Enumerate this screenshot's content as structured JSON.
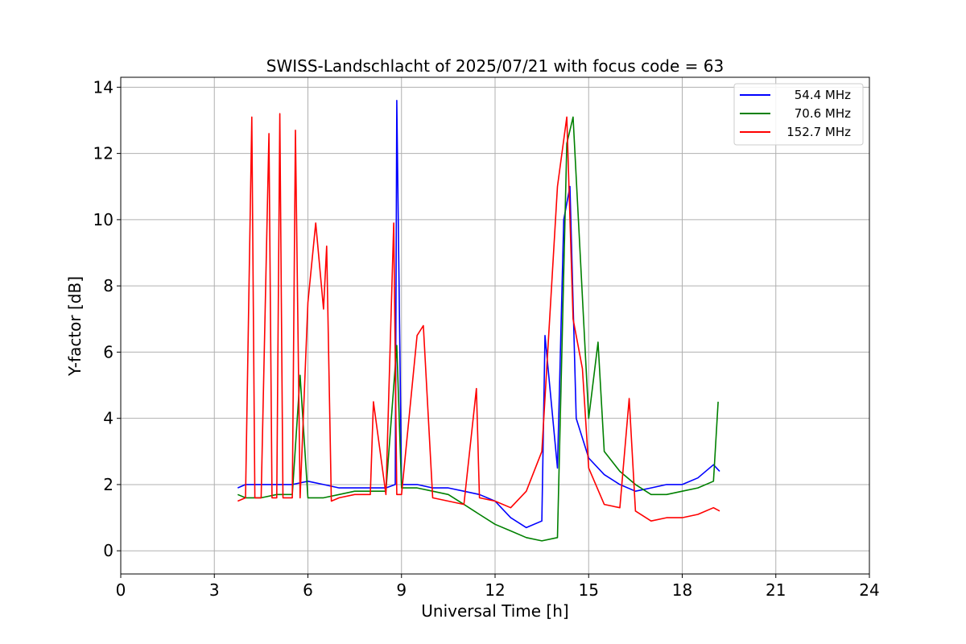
{
  "chart_data": {
    "type": "line",
    "title": "SWISS-Landschlacht of 2025/07/21 with focus code = 63",
    "xlabel": "Universal Time [h]",
    "ylabel": "Y-factor [dB]",
    "xlim": [
      0,
      24
    ],
    "ylim": [
      -0.7,
      14.3
    ],
    "xticks": [
      0,
      3,
      6,
      9,
      12,
      15,
      18,
      21,
      24
    ],
    "yticks": [
      0,
      2,
      4,
      6,
      8,
      10,
      12,
      14
    ],
    "grid": true,
    "legend_position": "top-right",
    "series": [
      {
        "name": "54.4 MHz",
        "color": "#0000ff",
        "x": [
          3.75,
          4.0,
          4.5,
          5.0,
          5.5,
          6.0,
          6.5,
          7.0,
          7.5,
          8.0,
          8.5,
          8.8,
          8.85,
          9.0,
          9.5,
          10.0,
          10.5,
          11.0,
          11.5,
          12.0,
          12.5,
          13.0,
          13.5,
          13.6,
          14.0,
          14.2,
          14.4,
          14.6,
          15.0,
          15.5,
          16.0,
          16.5,
          17.0,
          17.5,
          18.0,
          18.5,
          19.0,
          19.2
        ],
        "y": [
          1.9,
          2.0,
          2.0,
          2.0,
          2.0,
          2.1,
          2.0,
          1.9,
          1.9,
          1.9,
          1.9,
          2.0,
          13.6,
          2.0,
          2.0,
          1.9,
          1.9,
          1.8,
          1.7,
          1.5,
          1.0,
          0.7,
          0.9,
          6.5,
          2.5,
          10.0,
          11.0,
          4.0,
          2.8,
          2.3,
          2.0,
          1.8,
          1.9,
          2.0,
          2.0,
          2.2,
          2.6,
          2.4
        ]
      },
      {
        "name": "70.6 MHz",
        "color": "#008000",
        "x": [
          3.75,
          4.0,
          4.5,
          5.0,
          5.5,
          5.75,
          6.0,
          6.5,
          7.0,
          7.5,
          8.0,
          8.5,
          8.85,
          9.0,
          9.5,
          10.0,
          10.5,
          11.0,
          11.5,
          12.0,
          12.5,
          13.0,
          13.5,
          14.0,
          14.3,
          14.5,
          15.0,
          15.3,
          15.5,
          16.0,
          16.5,
          17.0,
          17.5,
          18.0,
          18.5,
          19.0,
          19.15
        ],
        "y": [
          1.7,
          1.6,
          1.6,
          1.7,
          1.7,
          5.3,
          1.6,
          1.6,
          1.7,
          1.8,
          1.8,
          1.8,
          6.2,
          1.9,
          1.9,
          1.8,
          1.7,
          1.4,
          1.1,
          0.8,
          0.6,
          0.4,
          0.3,
          0.4,
          12.3,
          13.1,
          4.0,
          6.3,
          3.0,
          2.4,
          2.0,
          1.7,
          1.7,
          1.8,
          1.9,
          2.1,
          4.5
        ]
      },
      {
        "name": "152.7 MHz",
        "color": "#ff0000",
        "x": [
          3.75,
          4.0,
          4.2,
          4.3,
          4.5,
          4.75,
          4.85,
          5.0,
          5.1,
          5.2,
          5.5,
          5.6,
          5.75,
          6.0,
          6.25,
          6.5,
          6.6,
          6.75,
          7.0,
          7.5,
          8.0,
          8.1,
          8.5,
          8.75,
          8.85,
          9.0,
          9.5,
          9.7,
          10.0,
          10.5,
          11.0,
          11.4,
          11.5,
          12.0,
          12.5,
          13.0,
          13.5,
          14.0,
          14.3,
          14.5,
          14.8,
          15.0,
          15.5,
          16.0,
          16.3,
          16.5,
          17.0,
          17.5,
          18.0,
          18.5,
          19.0,
          19.2
        ],
        "y": [
          1.5,
          1.6,
          13.1,
          1.6,
          1.6,
          12.6,
          1.6,
          1.6,
          13.2,
          1.6,
          1.6,
          12.7,
          1.6,
          7.5,
          9.9,
          7.3,
          9.2,
          1.5,
          1.6,
          1.7,
          1.7,
          4.5,
          1.7,
          9.9,
          1.7,
          1.7,
          6.5,
          6.8,
          1.6,
          1.5,
          1.4,
          4.9,
          1.6,
          1.5,
          1.3,
          1.8,
          3.0,
          11.0,
          13.1,
          7.0,
          5.5,
          2.5,
          1.4,
          1.3,
          4.6,
          1.2,
          0.9,
          1.0,
          1.0,
          1.1,
          1.3,
          1.2
        ]
      }
    ]
  }
}
